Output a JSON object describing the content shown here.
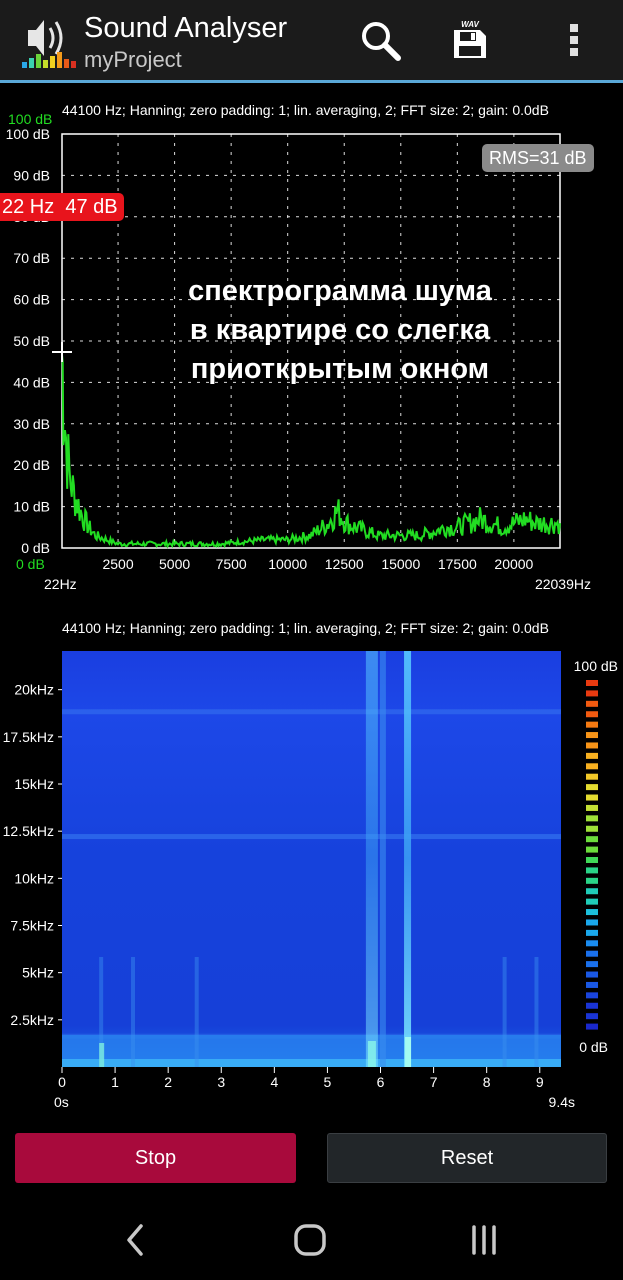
{
  "app": {
    "title": "Sound Analyser",
    "subtitle": "myProject"
  },
  "spectrum": {
    "info": "44100 Hz; Hanning; zero padding: 1; lin. averaging, 2; FFT size: 2; gain: 0.0dB",
    "top_green_label": "100 dB",
    "bottom_green_label": "0 dB",
    "rms": "RMS=31 dB",
    "peak": "22 Hz  47 dB",
    "overlay_lines": [
      "спектрограмма шума",
      "в квартире со слегка",
      "приоткрытым окном"
    ],
    "x_min_label": "22Hz",
    "x_max_label": "22039Hz",
    "colors": {
      "trace": "#22dd22",
      "grid": "#ffffff",
      "green_label": "#22dd22"
    }
  },
  "chart_data": [
    {
      "type": "line",
      "title": "",
      "xlabel": "",
      "ylabel": "",
      "xlim": [
        22,
        22039
      ],
      "ylim": [
        0,
        100
      ],
      "y_tick_labels": [
        "0 dB",
        "10 dB",
        "20 dB",
        "30 dB",
        "40 dB",
        "50 dB",
        "60 dB",
        "70 dB",
        "80 dB",
        "90 dB",
        "100 dB"
      ],
      "x_tick_labels": [
        "2500",
        "5000",
        "7500",
        "10000",
        "12500",
        "15000",
        "17500",
        "20000"
      ],
      "series": [
        {
          "x": [
            22,
            80,
            150,
            250,
            350,
            500,
            700,
            900,
            1200,
            1500,
            2000,
            2500,
            3000,
            4000,
            5000,
            6000,
            7000,
            8000,
            9000,
            10000,
            11000,
            11800,
            12200,
            12600,
            13000,
            14000,
            15000,
            15800,
            16500,
            17000,
            17500,
            18000,
            18500,
            19000,
            19500,
            20000,
            20500,
            21000,
            21500,
            22039
          ],
          "y": [
            47,
            38,
            30,
            23,
            18,
            14,
            11,
            8,
            5,
            3,
            2,
            1,
            1,
            1,
            1,
            1,
            1,
            1.5,
            2,
            2,
            3,
            6,
            9,
            6,
            5,
            3,
            3,
            3,
            4,
            5,
            5,
            6,
            7,
            6,
            5,
            6,
            7,
            6,
            6,
            6
          ]
        }
      ]
    },
    {
      "type": "heatmap",
      "title": "",
      "xlabel": "",
      "ylabel": "",
      "x_tick_labels": [
        "0",
        "1",
        "2",
        "3",
        "4",
        "5",
        "6",
        "7",
        "8",
        "9"
      ],
      "x_range_labels": [
        "0s",
        "9.4s"
      ],
      "xlim": [
        0,
        9.4
      ],
      "y_tick_labels": [
        "2.5kHz",
        "5kHz",
        "7.5kHz",
        "10kHz",
        "12.5kHz",
        "15kHz",
        "17.5kHz",
        "20kHz"
      ],
      "colorbar": {
        "max_label": "100 dB",
        "min_label": "0 dB"
      },
      "description_values": {
        "background_level_db": 25,
        "bright_time_columns_s": [
          5.8,
          6.5
        ],
        "bright_time_columns_db": [
          45,
          55
        ]
      }
    }
  ],
  "spectrogram": {
    "info": "44100 Hz; Hanning; zero padding: 1; lin. averaging, 2; FFT size: 2; gain: 0.0dB"
  },
  "buttons": {
    "stop": "Stop",
    "reset": "Reset"
  },
  "icons": {
    "logo": "speaker-equalizer-icon",
    "search": "search-icon",
    "save": "save-wav-icon",
    "menu": "overflow-menu-icon",
    "back": "back-icon",
    "home": "home-icon",
    "recents": "recents-icon"
  },
  "save_icon_text": "WAV"
}
